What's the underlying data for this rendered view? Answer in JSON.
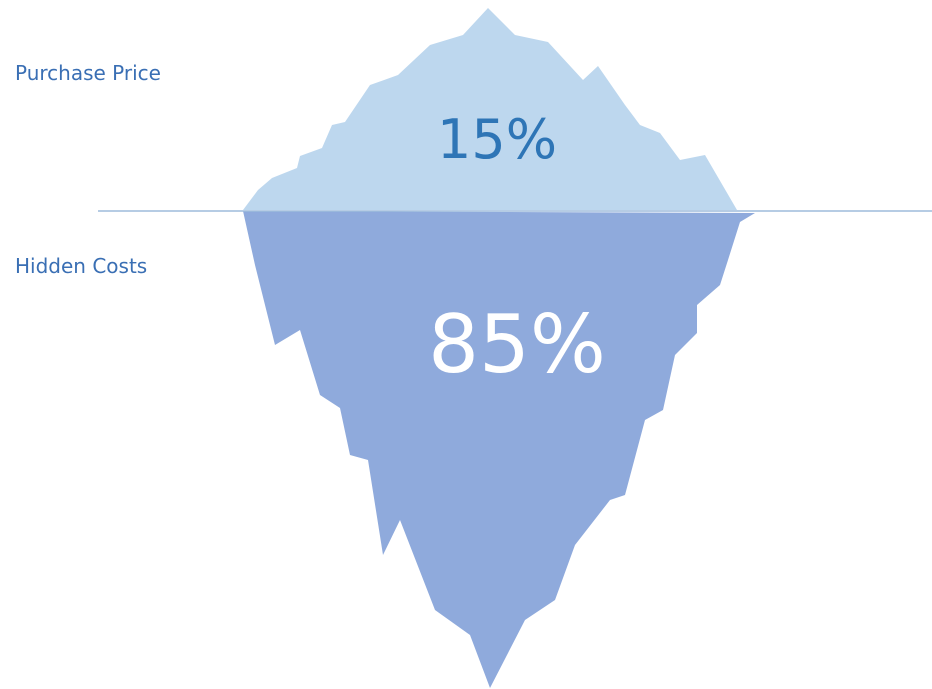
{
  "labels": {
    "top": "Purchase Price",
    "bottom": "Hidden Costs"
  },
  "iceberg": {
    "top_value": "15%",
    "bottom_value": "85%"
  }
}
